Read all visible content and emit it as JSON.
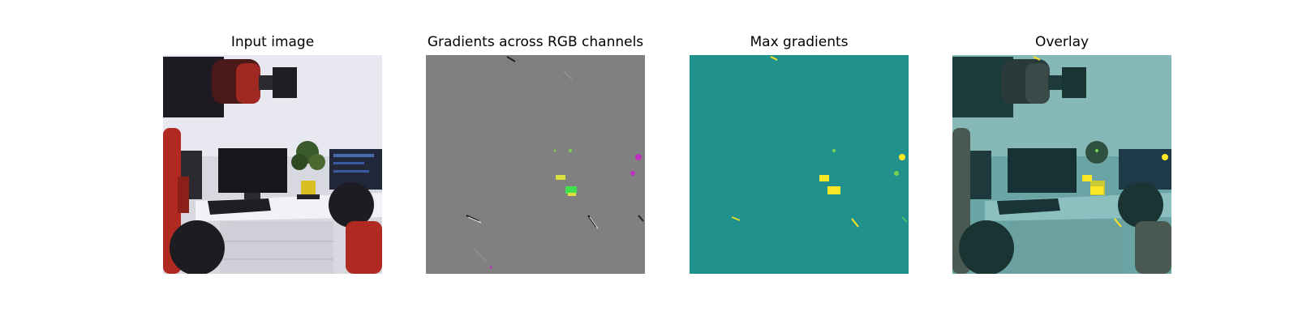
{
  "panels": [
    {
      "title": "Input image"
    },
    {
      "title": "Gradients across RGB channels"
    },
    {
      "title": "Max gradients"
    },
    {
      "title": "Overlay"
    }
  ],
  "colors": {
    "background": "#ffffff",
    "wall": "#e6e6ee",
    "gradient_gray": "#808080",
    "max_gradient_teal": "#21918c",
    "highlight_yellow": "#fde725",
    "highlight_green": "#7ad151",
    "highlight_magenta": "#c030c0",
    "robot_red": "#b02a22"
  }
}
